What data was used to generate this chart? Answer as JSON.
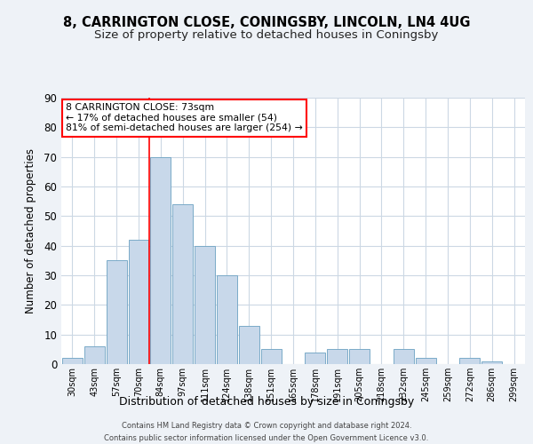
{
  "title": "8, CARRINGTON CLOSE, CONINGSBY, LINCOLN, LN4 4UG",
  "subtitle": "Size of property relative to detached houses in Coningsby",
  "xlabel": "Distribution of detached houses by size in Coningsby",
  "ylabel": "Number of detached properties",
  "bar_labels": [
    "30sqm",
    "43sqm",
    "57sqm",
    "70sqm",
    "84sqm",
    "97sqm",
    "111sqm",
    "124sqm",
    "138sqm",
    "151sqm",
    "165sqm",
    "178sqm",
    "191sqm",
    "205sqm",
    "218sqm",
    "232sqm",
    "245sqm",
    "259sqm",
    "272sqm",
    "286sqm",
    "299sqm"
  ],
  "bar_values": [
    2,
    6,
    35,
    42,
    70,
    54,
    40,
    30,
    13,
    5,
    0,
    4,
    5,
    5,
    0,
    5,
    2,
    0,
    2,
    1,
    0
  ],
  "bar_color": "#c8d8ea",
  "bar_edge_color": "#7aaac8",
  "ylim": [
    0,
    90
  ],
  "yticks": [
    0,
    10,
    20,
    30,
    40,
    50,
    60,
    70,
    80,
    90
  ],
  "annotation_title": "8 CARRINGTON CLOSE: 73sqm",
  "annotation_line1": "← 17% of detached houses are smaller (54)",
  "annotation_line2": "81% of semi-detached houses are larger (254) →",
  "footer_line1": "Contains HM Land Registry data © Crown copyright and database right 2024.",
  "footer_line2": "Contains public sector information licensed under the Open Government Licence v3.0.",
  "bg_color": "#eef2f7",
  "plot_bg_color": "#ffffff",
  "grid_color": "#ccd8e4",
  "title_fontsize": 10.5,
  "subtitle_fontsize": 9.5,
  "ref_line_x": 3.5
}
